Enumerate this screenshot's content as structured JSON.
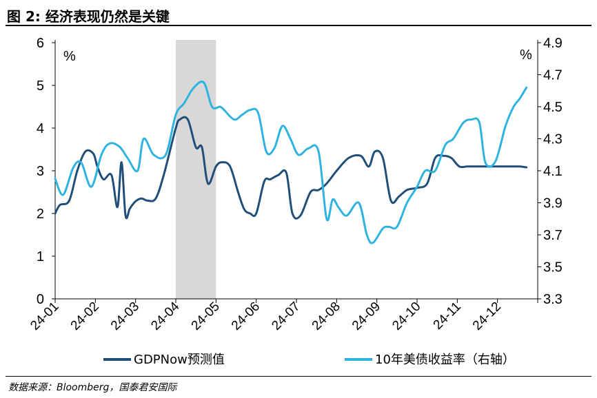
{
  "header": {
    "title": "图 2:  经济表现仍然是关键"
  },
  "footer": {
    "source": "数据来源：Bloomberg，国泰君安国际"
  },
  "colors": {
    "gdpnow": "#1f4e79",
    "yield": "#2eb3e0",
    "shade": "#d9d8d8"
  },
  "chart_data": {
    "type": "line",
    "left_axis": {
      "unit_label": "%",
      "ylim": [
        0,
        6
      ],
      "ticks": [
        "0",
        "1",
        "2",
        "3",
        "4",
        "5",
        "6"
      ]
    },
    "right_axis": {
      "unit_label": "%",
      "ylim": [
        3.3,
        4.9
      ],
      "ticks": [
        "3.3",
        "3.5",
        "3.7",
        "3.9",
        "4.1",
        "4.3",
        "4.5",
        "4.7",
        "4.9"
      ]
    },
    "x_labels": [
      "24-01",
      "24-02",
      "24-03",
      "24-04",
      "24-05",
      "24-06",
      "24-07",
      "24-08",
      "24-09",
      "24-10",
      "24-11",
      "24-12"
    ],
    "shaded_range": {
      "from": "24-04",
      "to": "24-05"
    },
    "series": [
      {
        "name": "GDPNow预测值",
        "axis": "left",
        "color": "#1f4e79",
        "x": [
          0,
          0.12,
          0.35,
          0.55,
          0.75,
          0.95,
          1.05,
          1.2,
          1.4,
          1.55,
          1.65,
          1.75,
          1.85,
          1.92,
          2.02,
          2.15,
          2.3,
          2.5,
          2.7,
          3.0,
          3.1,
          3.3,
          3.5,
          3.65,
          3.8,
          4.0,
          4.15,
          4.35,
          4.55,
          4.7,
          4.85,
          5.0,
          5.2,
          5.35,
          5.55,
          5.75,
          5.9,
          6.1,
          6.35,
          6.55,
          6.75,
          7.0,
          7.3,
          7.6,
          7.8,
          7.95,
          8.15,
          8.35,
          8.55,
          8.75,
          9.0,
          9.25,
          9.45,
          9.65,
          9.85,
          10.05,
          10.25,
          10.45,
          10.7,
          10.95,
          11.2,
          11.4,
          11.55,
          11.72
        ],
        "values": [
          2.0,
          2.2,
          2.3,
          3.0,
          3.45,
          3.4,
          3.1,
          2.8,
          2.9,
          2.15,
          3.2,
          1.95,
          2.1,
          2.2,
          2.3,
          2.35,
          2.3,
          2.35,
          2.9,
          4.0,
          4.2,
          4.2,
          3.55,
          3.55,
          2.7,
          3.1,
          3.2,
          3.1,
          2.5,
          2.1,
          2.0,
          2.0,
          2.75,
          2.8,
          2.9,
          2.95,
          2.0,
          1.95,
          2.5,
          2.55,
          2.7,
          3.0,
          3.3,
          3.35,
          3.1,
          3.45,
          3.3,
          2.3,
          2.4,
          2.55,
          2.6,
          2.7,
          3.3,
          3.35,
          3.3,
          3.1,
          3.1,
          3.1,
          3.1,
          3.1,
          3.1,
          3.1,
          3.1,
          3.08
        ]
      },
      {
        "name": "10年美债收益率（右轴）",
        "axis": "right",
        "color": "#2eb3e0",
        "x": [
          0,
          0.2,
          0.45,
          0.65,
          0.9,
          1.15,
          1.35,
          1.6,
          1.8,
          2.05,
          2.2,
          2.45,
          2.75,
          3.0,
          3.2,
          3.45,
          3.7,
          3.9,
          4.1,
          4.2,
          4.45,
          4.65,
          4.85,
          5.05,
          5.25,
          5.45,
          5.65,
          5.85,
          6.05,
          6.3,
          6.55,
          6.75,
          6.9,
          7.05,
          7.25,
          7.55,
          7.75,
          7.9,
          8.15,
          8.3,
          8.5,
          8.75,
          9.0,
          9.2,
          9.45,
          9.7,
          9.9,
          10.15,
          10.35,
          10.55,
          10.7,
          10.95,
          11.2,
          11.4,
          11.55,
          11.72
        ],
        "values": [
          4.05,
          3.95,
          4.12,
          4.15,
          4.0,
          4.2,
          4.27,
          4.25,
          4.18,
          4.1,
          4.3,
          4.2,
          4.2,
          4.45,
          4.52,
          4.62,
          4.65,
          4.5,
          4.5,
          4.48,
          4.42,
          4.45,
          4.48,
          4.46,
          4.22,
          4.24,
          4.38,
          4.3,
          4.2,
          4.24,
          4.22,
          3.8,
          3.92,
          3.87,
          3.82,
          3.9,
          3.7,
          3.65,
          3.74,
          3.75,
          3.75,
          3.9,
          4.0,
          4.1,
          4.1,
          4.26,
          4.3,
          4.4,
          4.42,
          4.4,
          4.15,
          4.16,
          4.38,
          4.5,
          4.55,
          4.62
        ]
      }
    ],
    "legend": {
      "position": "bottom"
    }
  }
}
